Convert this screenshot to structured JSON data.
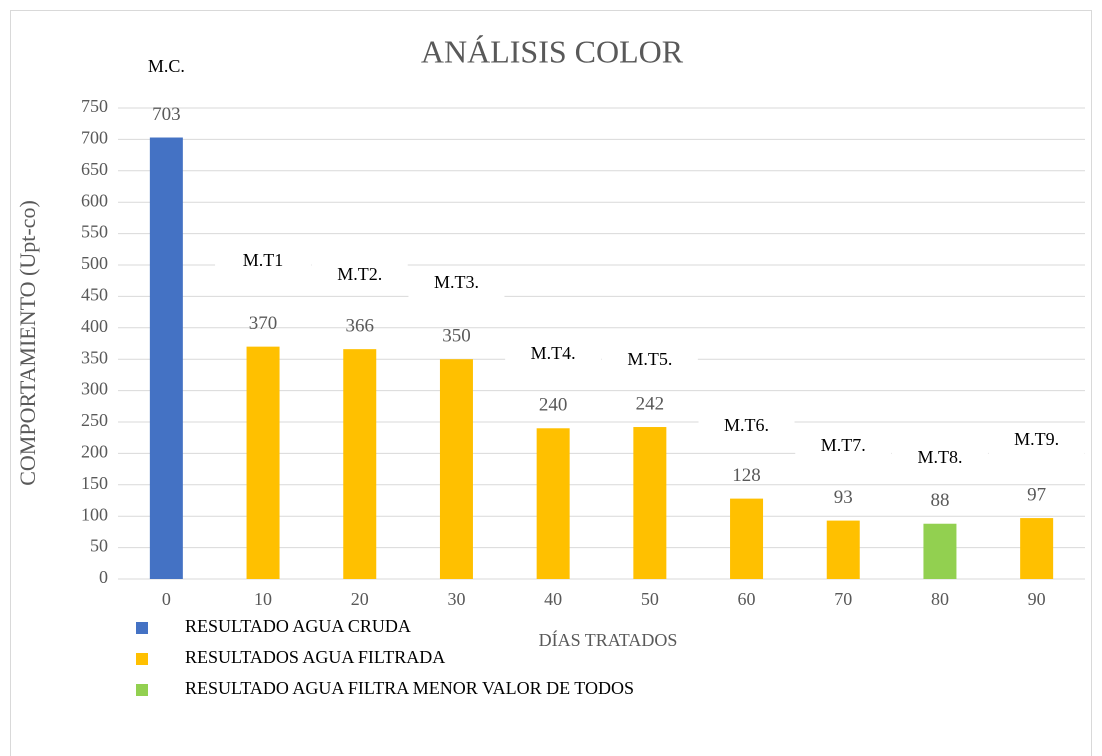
{
  "chart_data": {
    "type": "bar",
    "title": "ANÁLISIS COLOR",
    "x_label": "DÍAS TRATADOS",
    "y_label": "COMPORTAMIENTO (Upt-co)",
    "categories": [
      "0",
      "10",
      "20",
      "30",
      "40",
      "50",
      "60",
      "70",
      "80",
      "90"
    ],
    "annotations": [
      "M.C.",
      "M.T1",
      "M.T2.",
      "M.T3.",
      "M.T4.",
      "M.T5.",
      "M.T6.",
      "M.T7.",
      "M.T8.",
      "M.T9."
    ],
    "series": [
      {
        "name": "RESULTADO AGUA CRUDA",
        "color": "#4472c4",
        "values": [
          703,
          null,
          null,
          null,
          null,
          null,
          null,
          null,
          null,
          null
        ]
      },
      {
        "name": "RESULTADOS AGUA FILTRADA",
        "color": "#ffc000",
        "values": [
          null,
          370,
          366,
          350,
          240,
          242,
          128,
          93,
          null,
          97
        ]
      },
      {
        "name": "RESULTADO AGUA FILTRA MENOR VALOR DE TODOS",
        "color": "#92d050",
        "values": [
          null,
          null,
          null,
          null,
          null,
          null,
          null,
          null,
          88,
          null
        ]
      }
    ],
    "ylim": [
      0,
      750
    ],
    "yticks": [
      0,
      50,
      100,
      150,
      200,
      250,
      300,
      350,
      400,
      450,
      500,
      550,
      600,
      650,
      700,
      750
    ],
    "grid": true
  }
}
